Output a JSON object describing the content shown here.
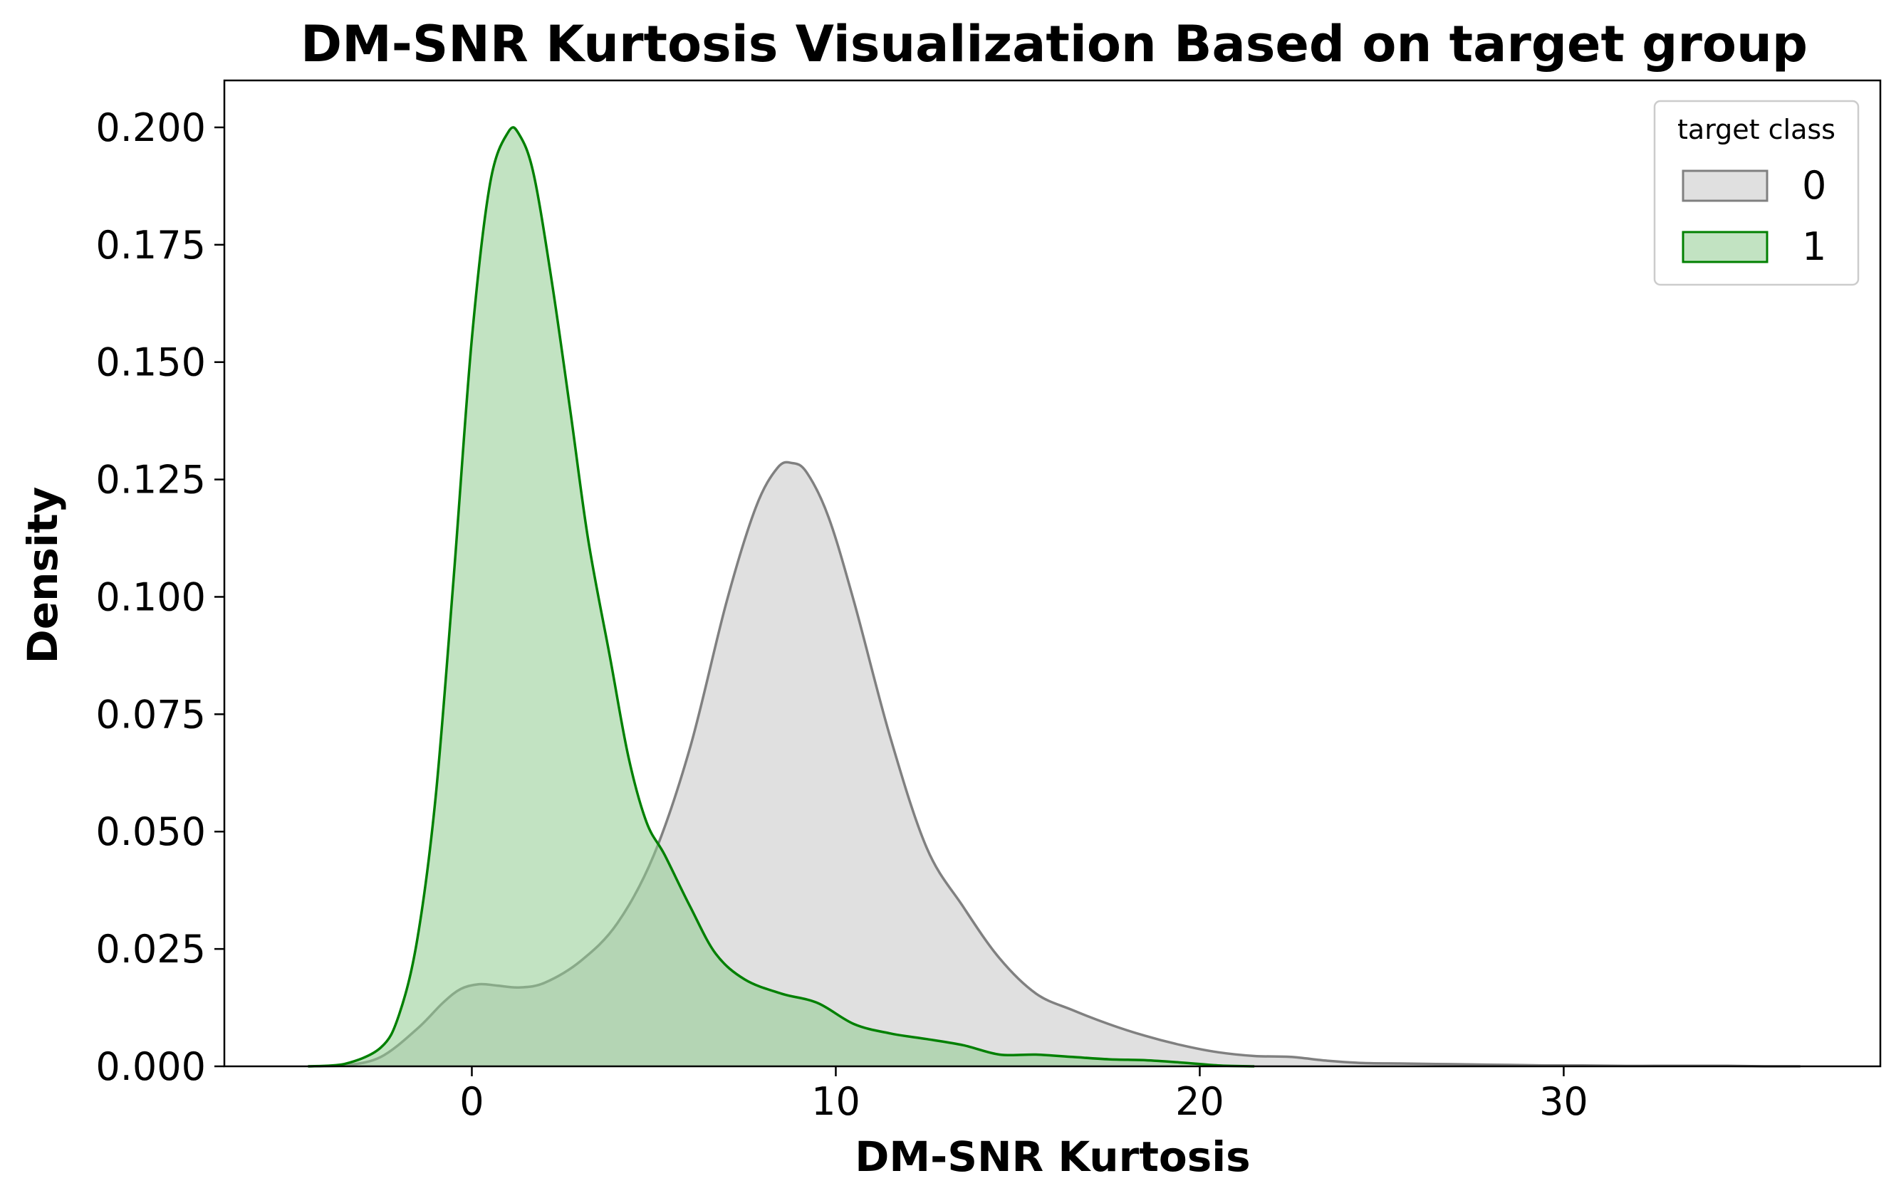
{
  "chart_data": {
    "type": "area",
    "title": "DM-SNR Kurtosis Visualization Based on target group",
    "xlabel": "DM-SNR Kurtosis",
    "ylabel": "Density",
    "xlim": [
      -6.8,
      38.7
    ],
    "ylim": [
      0,
      0.21
    ],
    "x_ticks": [
      0,
      10,
      20,
      30
    ],
    "y_ticks": [
      0.0,
      0.025,
      0.05,
      0.075,
      0.1,
      0.125,
      0.15,
      0.175,
      0.2
    ],
    "x_tick_labels": [
      "0",
      "10",
      "20",
      "30"
    ],
    "y_tick_labels": [
      "0.000",
      "0.025",
      "0.050",
      "0.075",
      "0.100",
      "0.125",
      "0.150",
      "0.175",
      "0.200"
    ],
    "grid": false,
    "legend": {
      "title": "target class",
      "placement": "top-right"
    },
    "series": [
      {
        "name": "0",
        "line_color": "#808080",
        "fill_color": "#d3d3d3",
        "fill_opacity": 0.7,
        "x": [
          -4.5,
          -3.5,
          -2.5,
          -1.5,
          -0.8,
          -0.3,
          0.2,
          0.7,
          1.3,
          2.0,
          3.0,
          4.0,
          5.0,
          6.0,
          7.0,
          7.8,
          8.4,
          8.8,
          9.2,
          9.8,
          10.5,
          11.5,
          12.5,
          13.5,
          14.5,
          15.5,
          16.5,
          17.5,
          18.5,
          19.5,
          20.5,
          21.5,
          22.5,
          23.5,
          24.5,
          25.5,
          26.5,
          27.5,
          28.5,
          29.5,
          30.5,
          31.5,
          32.5,
          33.5,
          34.5,
          35.5,
          36.5
        ],
        "y": [
          0.0,
          0.0002,
          0.002,
          0.008,
          0.0135,
          0.0165,
          0.0175,
          0.0172,
          0.0168,
          0.0178,
          0.0225,
          0.0305,
          0.045,
          0.068,
          0.099,
          0.119,
          0.1275,
          0.1285,
          0.1265,
          0.117,
          0.099,
          0.07,
          0.0465,
          0.034,
          0.023,
          0.0155,
          0.012,
          0.009,
          0.0065,
          0.0045,
          0.003,
          0.0022,
          0.002,
          0.0012,
          0.0007,
          0.0006,
          0.0005,
          0.0004,
          0.0003,
          0.0002,
          0.0002,
          0.0001,
          0.0001,
          0.0001,
          0.0001,
          0.0,
          0.0
        ]
      },
      {
        "name": "1",
        "line_color": "#008000",
        "fill_color": "#90cc90",
        "fill_opacity": 0.55,
        "x": [
          -4.5,
          -3.5,
          -2.5,
          -2.0,
          -1.5,
          -1.0,
          -0.5,
          0.0,
          0.5,
          1.0,
          1.3,
          1.7,
          2.2,
          2.7,
          3.2,
          3.8,
          4.3,
          4.8,
          5.3,
          6.0,
          6.7,
          7.5,
          8.5,
          9.5,
          10.5,
          11.5,
          12.5,
          13.5,
          14.5,
          15.5,
          16.5,
          17.5,
          18.5,
          19.5,
          20.5,
          21.5
        ],
        "y": [
          0.0,
          0.0005,
          0.004,
          0.011,
          0.027,
          0.057,
          0.104,
          0.155,
          0.188,
          0.199,
          0.1985,
          0.19,
          0.167,
          0.14,
          0.112,
          0.087,
          0.066,
          0.052,
          0.045,
          0.034,
          0.024,
          0.0185,
          0.0155,
          0.0135,
          0.009,
          0.007,
          0.0058,
          0.0045,
          0.0025,
          0.0025,
          0.002,
          0.0015,
          0.0013,
          0.0008,
          0.0002,
          0.0
        ]
      }
    ]
  }
}
